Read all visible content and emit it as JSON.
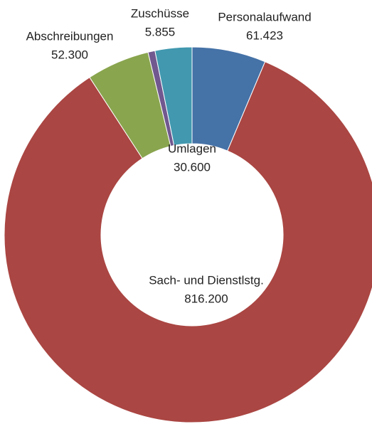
{
  "chart_data": {
    "type": "donut",
    "categories": [
      "Personalaufwand",
      "Sach- und Dienstlstg.",
      "Abschreibungen",
      "Zuschüsse",
      "Umlagen"
    ],
    "values": [
      61423,
      816200,
      52300,
      5855,
      30600
    ],
    "value_labels": [
      "61.423",
      "816.200",
      "52.300",
      "5.855",
      "30.600"
    ],
    "colors": [
      "#4572a7",
      "#aa4643",
      "#89a54e",
      "#71588f",
      "#4198af"
    ]
  }
}
